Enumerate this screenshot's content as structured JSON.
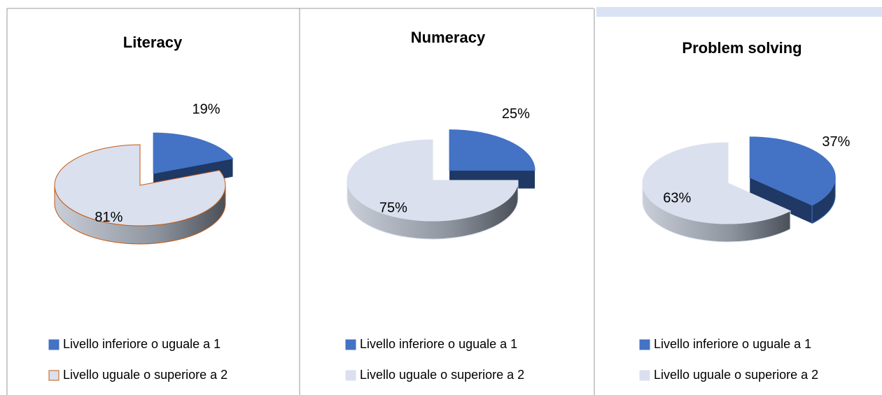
{
  "chart_data": [
    {
      "type": "pie",
      "title": "Literacy",
      "categories": [
        "Livello inferiore o uguale a 1",
        "Livello uguale o superiore a 2"
      ],
      "values": [
        19,
        81
      ],
      "value_labels": [
        "19%",
        "81%"
      ],
      "colors": [
        "#4472c4",
        "#dae0ee"
      ],
      "side_colors": [
        "#1f3864",
        "#9aa0aa"
      ],
      "edge_colors": [
        "#4472c4",
        "#c55a11"
      ]
    },
    {
      "type": "pie",
      "title": "Numeracy",
      "categories": [
        "Livello inferiore o uguale a 1",
        "Livello uguale o superiore a 2"
      ],
      "values": [
        25,
        75
      ],
      "value_labels": [
        "25%",
        "75%"
      ],
      "colors": [
        "#4472c4",
        "#dae0ee"
      ],
      "side_colors": [
        "#1f3864",
        "#9aa0aa"
      ],
      "edge_colors": [
        "#4472c4",
        "#dae0ee"
      ]
    },
    {
      "type": "pie",
      "title": "Problem solving",
      "categories": [
        "Livello inferiore o uguale a 1",
        "Livello uguale o superiore a 2"
      ],
      "values": [
        37,
        63
      ],
      "value_labels": [
        "37%",
        "63%"
      ],
      "colors": [
        "#4472c4",
        "#dae0ee"
      ],
      "side_colors": [
        "#1f3864",
        "#9aa0aa"
      ],
      "edge_colors": [
        "#4472c4",
        "#dae0ee"
      ]
    }
  ]
}
